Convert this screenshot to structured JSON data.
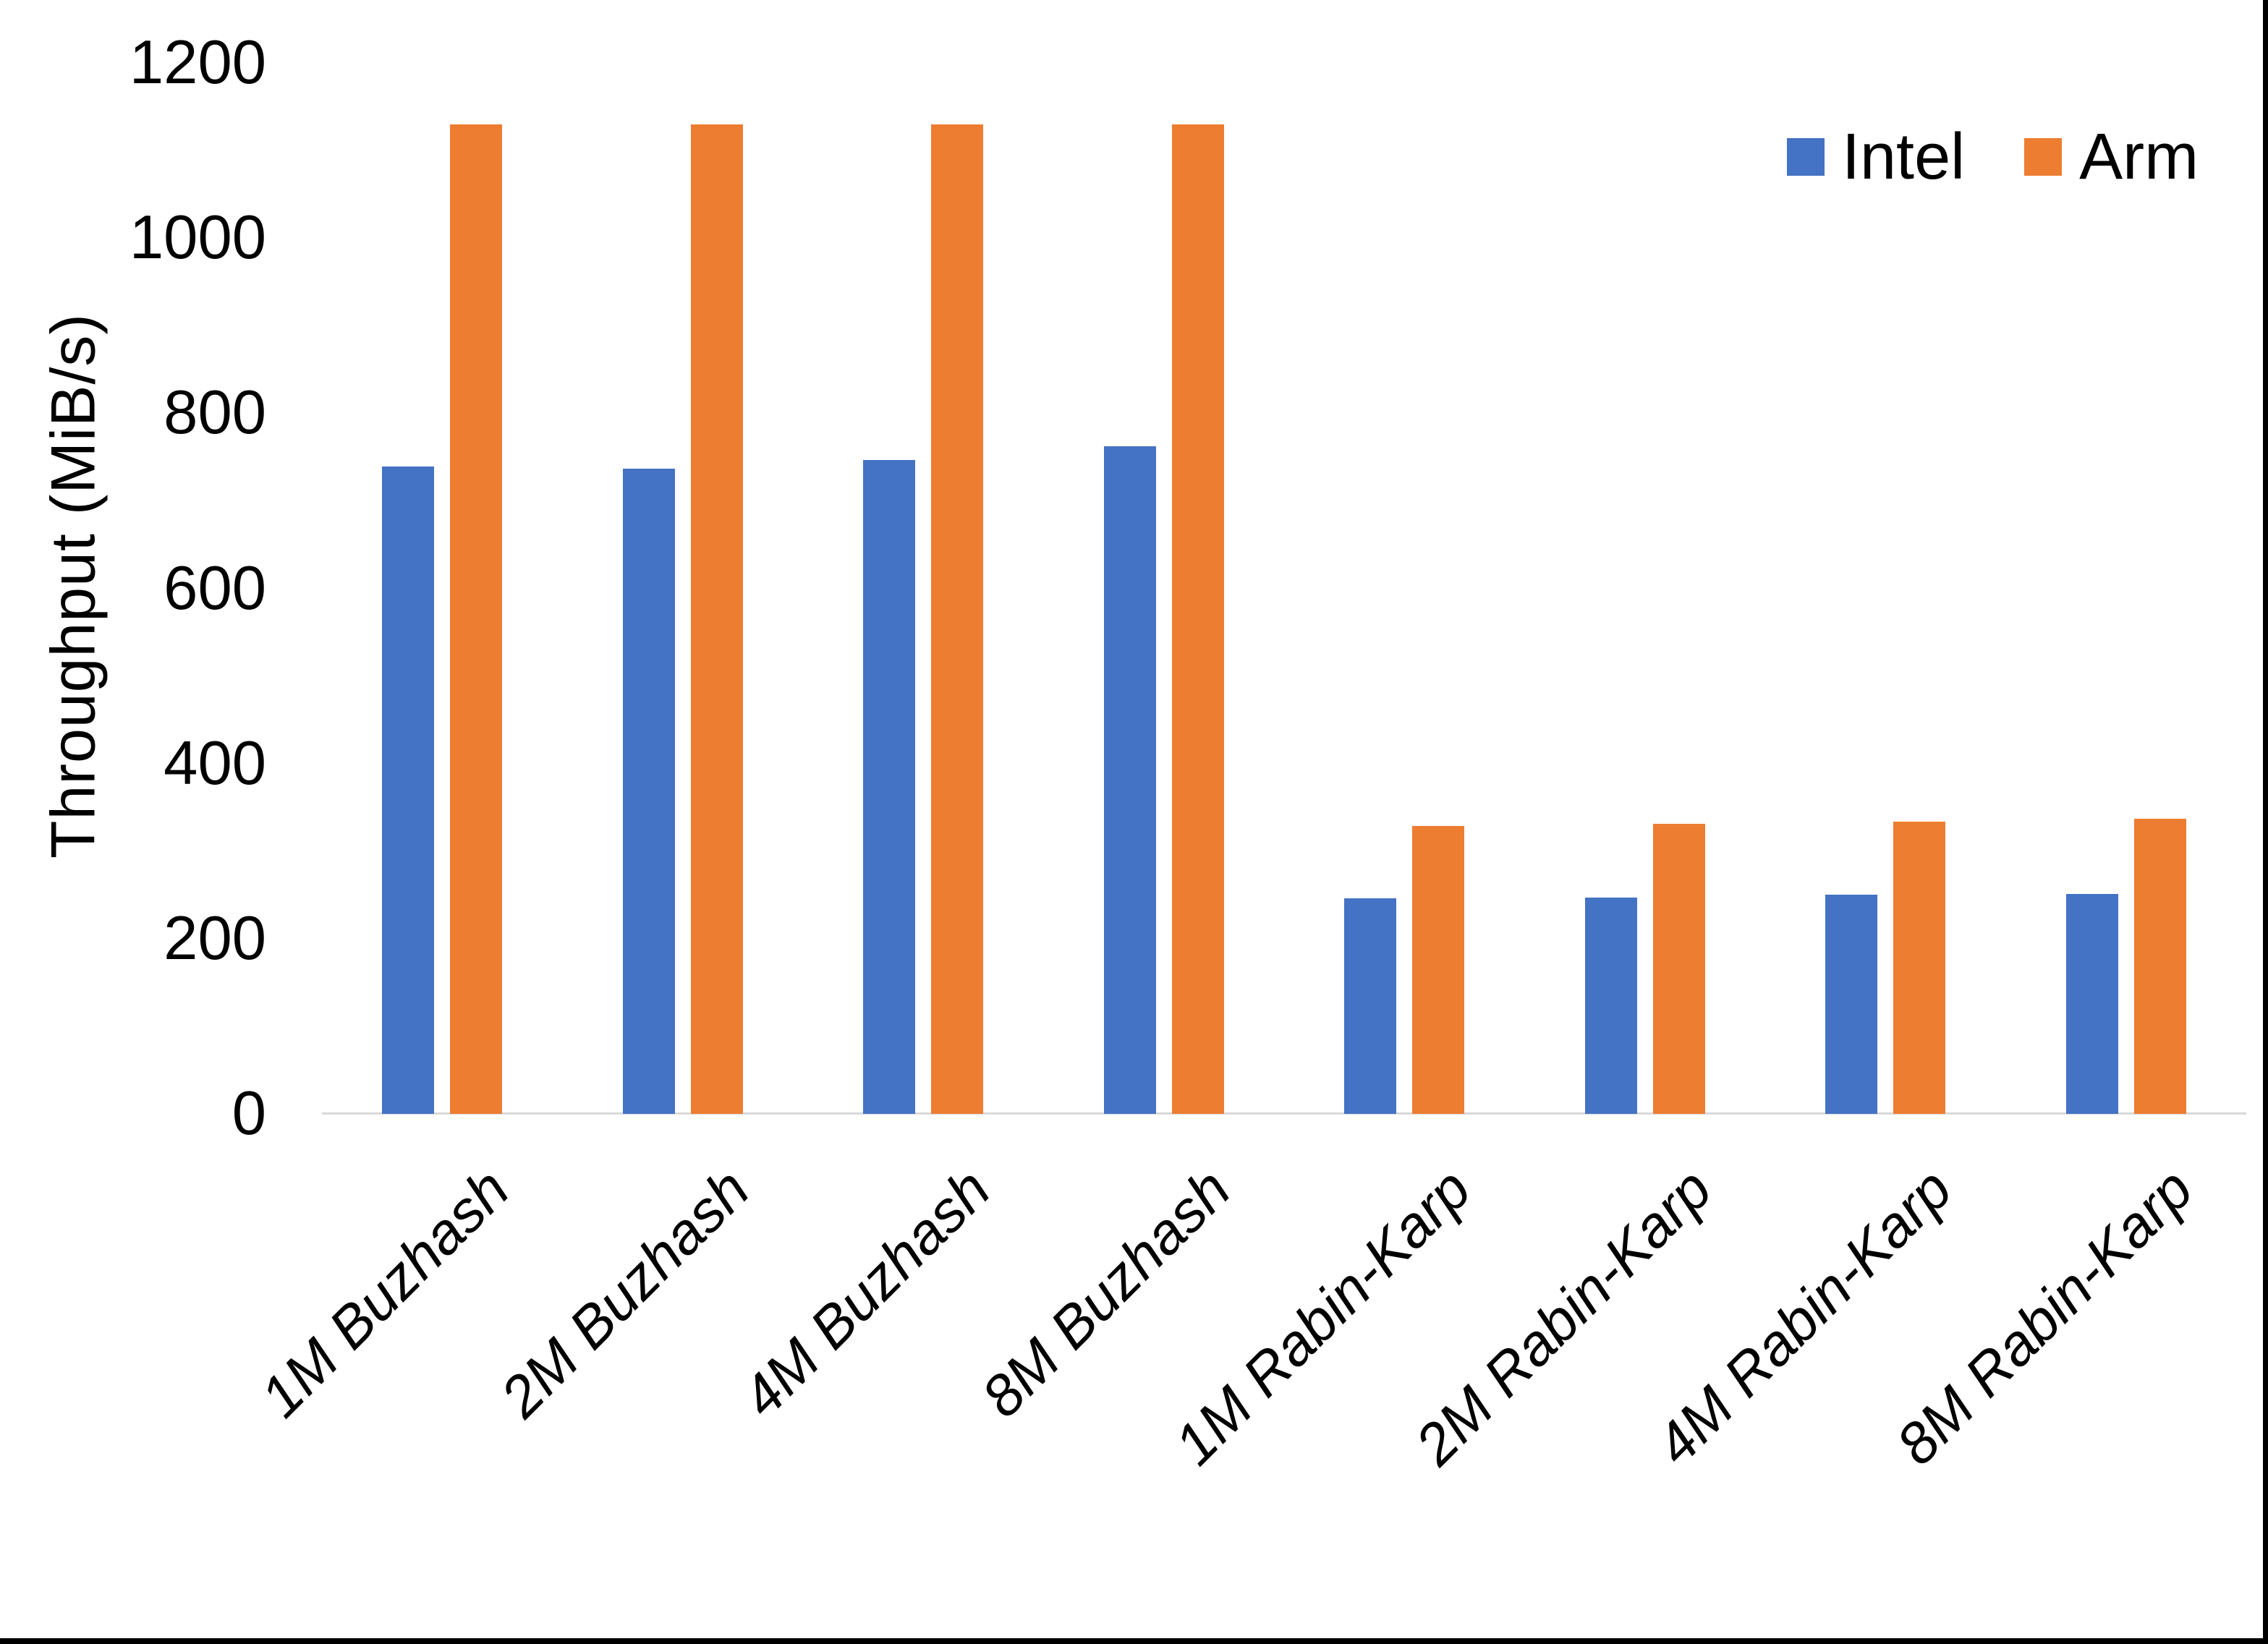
{
  "chart_data": {
    "type": "bar",
    "title": "",
    "xlabel": "",
    "ylabel": "Throughput (MiB/s)",
    "ylim": [
      0,
      1200
    ],
    "yticks": [
      0,
      200,
      400,
      600,
      800,
      1000,
      1200
    ],
    "grid": false,
    "legend_position": "top-right",
    "axis_line_color": "#d9d9d9",
    "text_color": "#000000",
    "categories": [
      "1M Buzhash",
      "2M Buzhash",
      "4M Buzhash",
      "8M Buzhash",
      "1M Rabin-Karp",
      "2M Rabin-Karp",
      "4M Rabin-Karp",
      "8M Rabin-Karp"
    ],
    "series": [
      {
        "name": "Intel",
        "color": "#4472c4",
        "values": [
          739,
          737,
          747,
          762,
          246,
          247,
          250,
          251
        ]
      },
      {
        "name": "Arm",
        "color": "#ed7d31",
        "values": [
          1130,
          1130,
          1130,
          1130,
          329,
          331,
          334,
          337
        ]
      }
    ]
  }
}
